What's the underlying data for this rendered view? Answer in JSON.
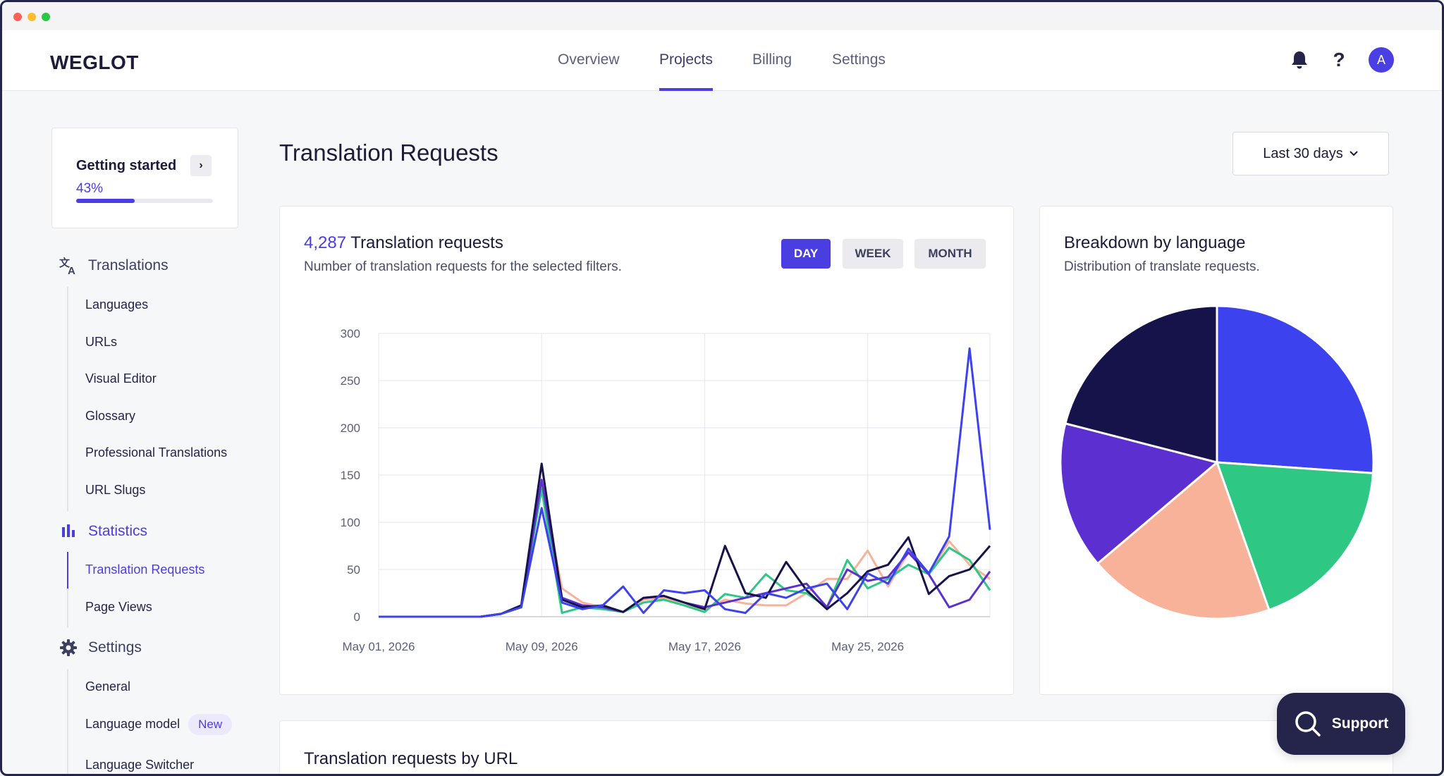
{
  "nav": {
    "logo": "WEGLOT",
    "items": [
      {
        "label": "Overview"
      },
      {
        "label": "Projects"
      },
      {
        "label": "Billing"
      },
      {
        "label": "Settings"
      }
    ],
    "active": "Projects",
    "avatar_initial": "A",
    "help_label": "?"
  },
  "getting_started": {
    "title": "Getting started",
    "chevron": "›",
    "percent_label": "43%",
    "progress": 0.43
  },
  "sidebar": {
    "translations": {
      "label": "Translations",
      "items": [
        "Languages",
        "URLs",
        "Visual Editor",
        "Glossary",
        "Professional Translations",
        "URL Slugs"
      ]
    },
    "statistics": {
      "label": "Statistics",
      "items": [
        "Translation Requests",
        "Page Views"
      ],
      "active_item": "Translation Requests"
    },
    "settings": {
      "label": "Settings",
      "items": [
        "General",
        "Language model",
        "Language Switcher"
      ],
      "new_badge": "New"
    }
  },
  "main": {
    "title": "Translation Requests",
    "range_label": "Last 30 days",
    "url_card_title": "Translation requests by URL"
  },
  "chart_card": {
    "count": "4,287",
    "count_label": "Translation requests",
    "subtitle": "Number of translation requests for the selected filters.",
    "toggles": [
      {
        "label": "DAY",
        "active": true
      },
      {
        "label": "WEEK",
        "active": false
      },
      {
        "label": "MONTH",
        "active": false
      }
    ]
  },
  "pie_card": {
    "title": "Breakdown by language",
    "subtitle": "Distribution of translate requests."
  },
  "support": {
    "label": "Support"
  },
  "chart_data": [
    {
      "type": "line",
      "title": "",
      "xlabel": "",
      "ylabel": "",
      "x": [
        "May 01, 2026",
        "May 02, 2026",
        "May 03, 2026",
        "May 04, 2026",
        "May 05, 2026",
        "May 06, 2026",
        "May 07, 2026",
        "May 08, 2026",
        "May 09, 2026",
        "May 10, 2026",
        "May 11, 2026",
        "May 12, 2026",
        "May 13, 2026",
        "May 14, 2026",
        "May 15, 2026",
        "May 16, 2026",
        "May 17, 2026",
        "May 18, 2026",
        "May 19, 2026",
        "May 20, 2026",
        "May 21, 2026",
        "May 22, 2026",
        "May 23, 2026",
        "May 24, 2026",
        "May 25, 2026",
        "May 26, 2026",
        "May 27, 2026",
        "May 28, 2026",
        "May 29, 2026",
        "May 30, 2026",
        "May 31, 2026"
      ],
      "x_ticks": [
        "May 01, 2026",
        "May 09, 2026",
        "May 17, 2026",
        "May 25, 2026"
      ],
      "y_ticks": [
        0,
        50,
        100,
        150,
        200,
        250,
        300
      ],
      "ylim": [
        0,
        300
      ],
      "grid": true,
      "series": [
        {
          "color": "#f9b29a",
          "values": [
            0,
            0,
            0,
            0,
            0,
            0,
            3,
            10,
            140,
            30,
            15,
            10,
            5,
            18,
            20,
            12,
            8,
            18,
            14,
            12,
            12,
            25,
            40,
            40,
            70,
            32,
            68,
            45,
            80,
            55,
            40
          ]
        },
        {
          "color": "#2ec784",
          "values": [
            0,
            0,
            0,
            0,
            0,
            0,
            3,
            10,
            135,
            4,
            10,
            8,
            5,
            15,
            18,
            12,
            5,
            24,
            20,
            45,
            28,
            25,
            10,
            60,
            30,
            40,
            55,
            45,
            73,
            60,
            28
          ]
        },
        {
          "color": "#5b2fd0",
          "values": [
            0,
            0,
            0,
            0,
            0,
            0,
            3,
            10,
            145,
            20,
            12,
            10,
            5,
            20,
            22,
            15,
            10,
            15,
            20,
            25,
            30,
            35,
            10,
            50,
            38,
            42,
            68,
            45,
            10,
            18,
            48
          ]
        },
        {
          "color": "#16134a",
          "values": [
            0,
            0,
            0,
            0,
            0,
            0,
            3,
            12,
            162,
            18,
            10,
            12,
            5,
            20,
            22,
            15,
            8,
            75,
            25,
            20,
            58,
            28,
            8,
            25,
            48,
            55,
            84,
            24,
            43,
            50,
            75
          ]
        },
        {
          "color": "#3c43ee",
          "values": [
            0,
            0,
            0,
            0,
            0,
            0,
            3,
            10,
            115,
            15,
            8,
            12,
            32,
            4,
            28,
            25,
            28,
            8,
            4,
            25,
            20,
            30,
            35,
            8,
            46,
            35,
            72,
            46,
            85,
            284,
            92
          ]
        }
      ]
    },
    {
      "type": "pie",
      "slices": [
        {
          "color": "#3c43ee",
          "value": 26.1
        },
        {
          "color": "#2ec784",
          "value": 18.5
        },
        {
          "color": "#f9b29a",
          "value": 19.2
        },
        {
          "color": "#5b2fd0",
          "value": 15.2
        },
        {
          "color": "#16134a",
          "value": 21.0
        }
      ]
    }
  ]
}
